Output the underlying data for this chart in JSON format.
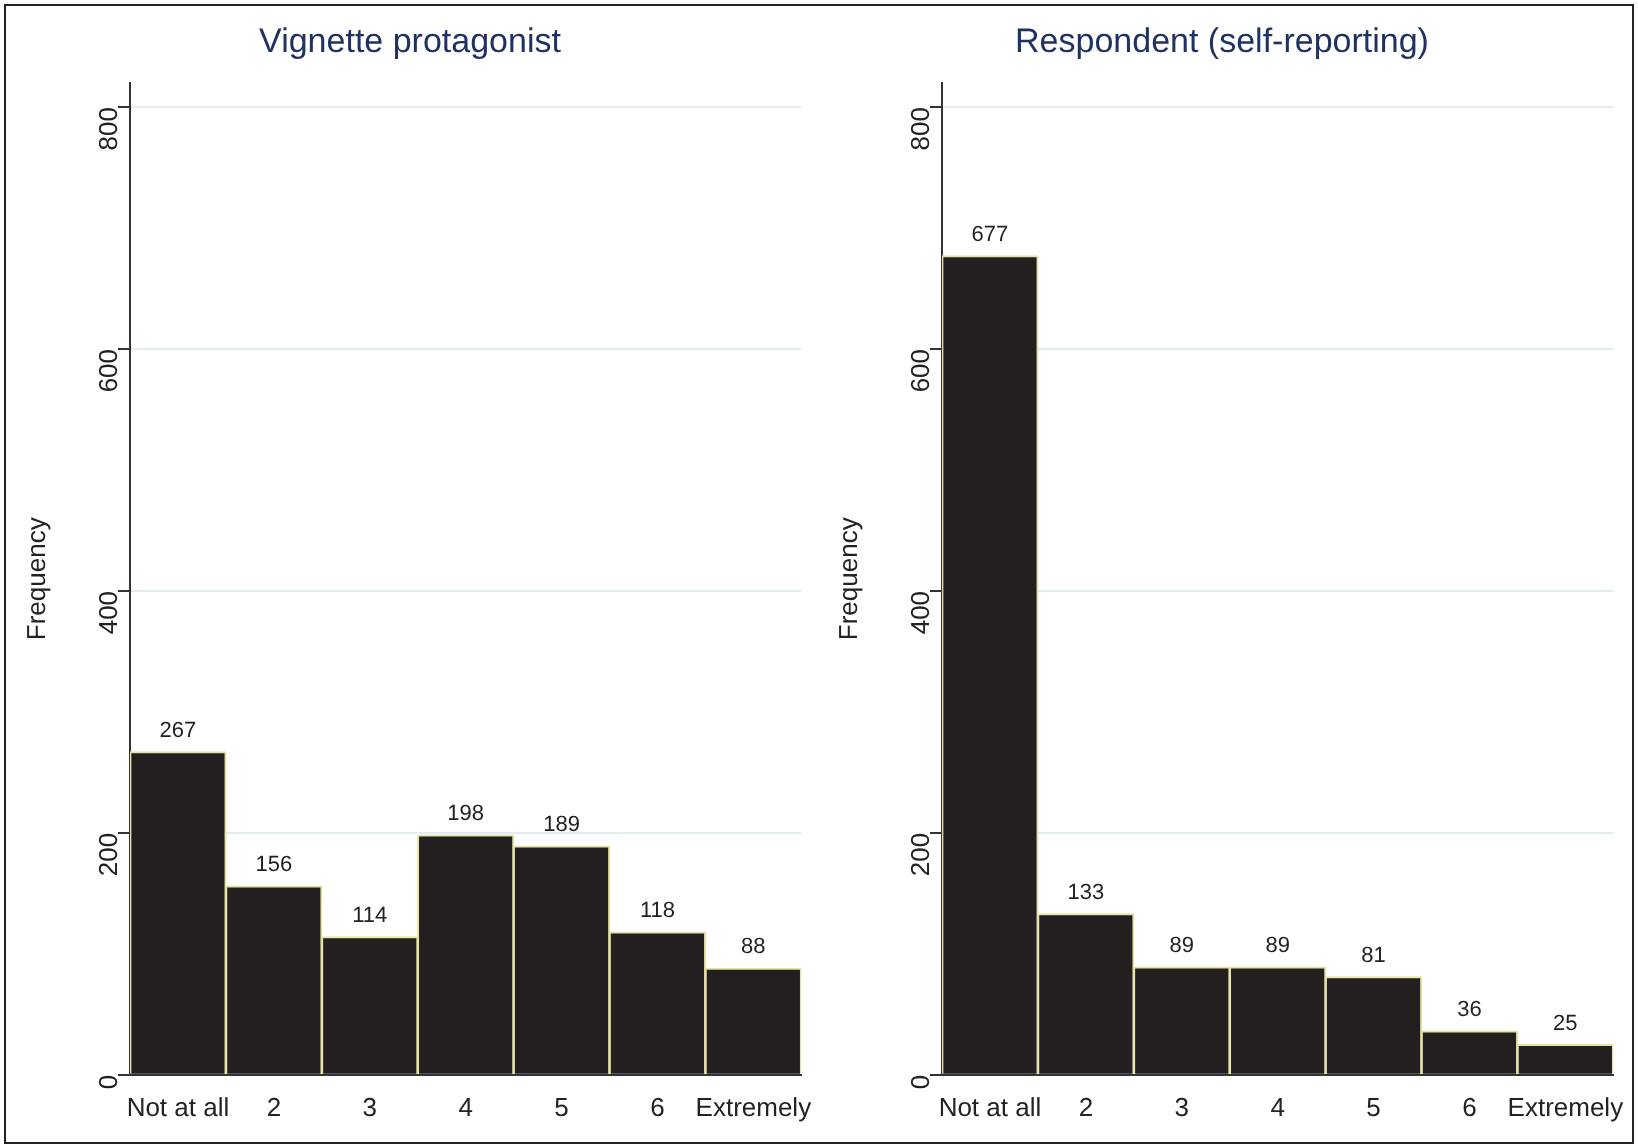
{
  "chart_data": [
    {
      "type": "bar",
      "title": "Vignette protagonist",
      "ylabel": "Frequency",
      "categories": [
        "Not at all",
        "2",
        "3",
        "4",
        "5",
        "6",
        "Extremely"
      ],
      "values": [
        267,
        156,
        114,
        198,
        189,
        118,
        88
      ],
      "color": "#231f20",
      "ylim": [
        0,
        820
      ],
      "yticks": [
        0,
        200,
        400,
        600,
        800
      ],
      "grid": "y",
      "data_labels": true
    },
    {
      "type": "bar",
      "title": "Respondent (self-reporting)",
      "ylabel": "Frequency",
      "categories": [
        "Not at all",
        "2",
        "3",
        "4",
        "5",
        "6",
        "Extremely"
      ],
      "values": [
        677,
        133,
        89,
        89,
        81,
        36,
        25
      ],
      "color": "#231f20",
      "ylim": [
        0,
        820
      ],
      "yticks": [
        0,
        200,
        400,
        600,
        800
      ],
      "grid": "y",
      "data_labels": true
    }
  ]
}
